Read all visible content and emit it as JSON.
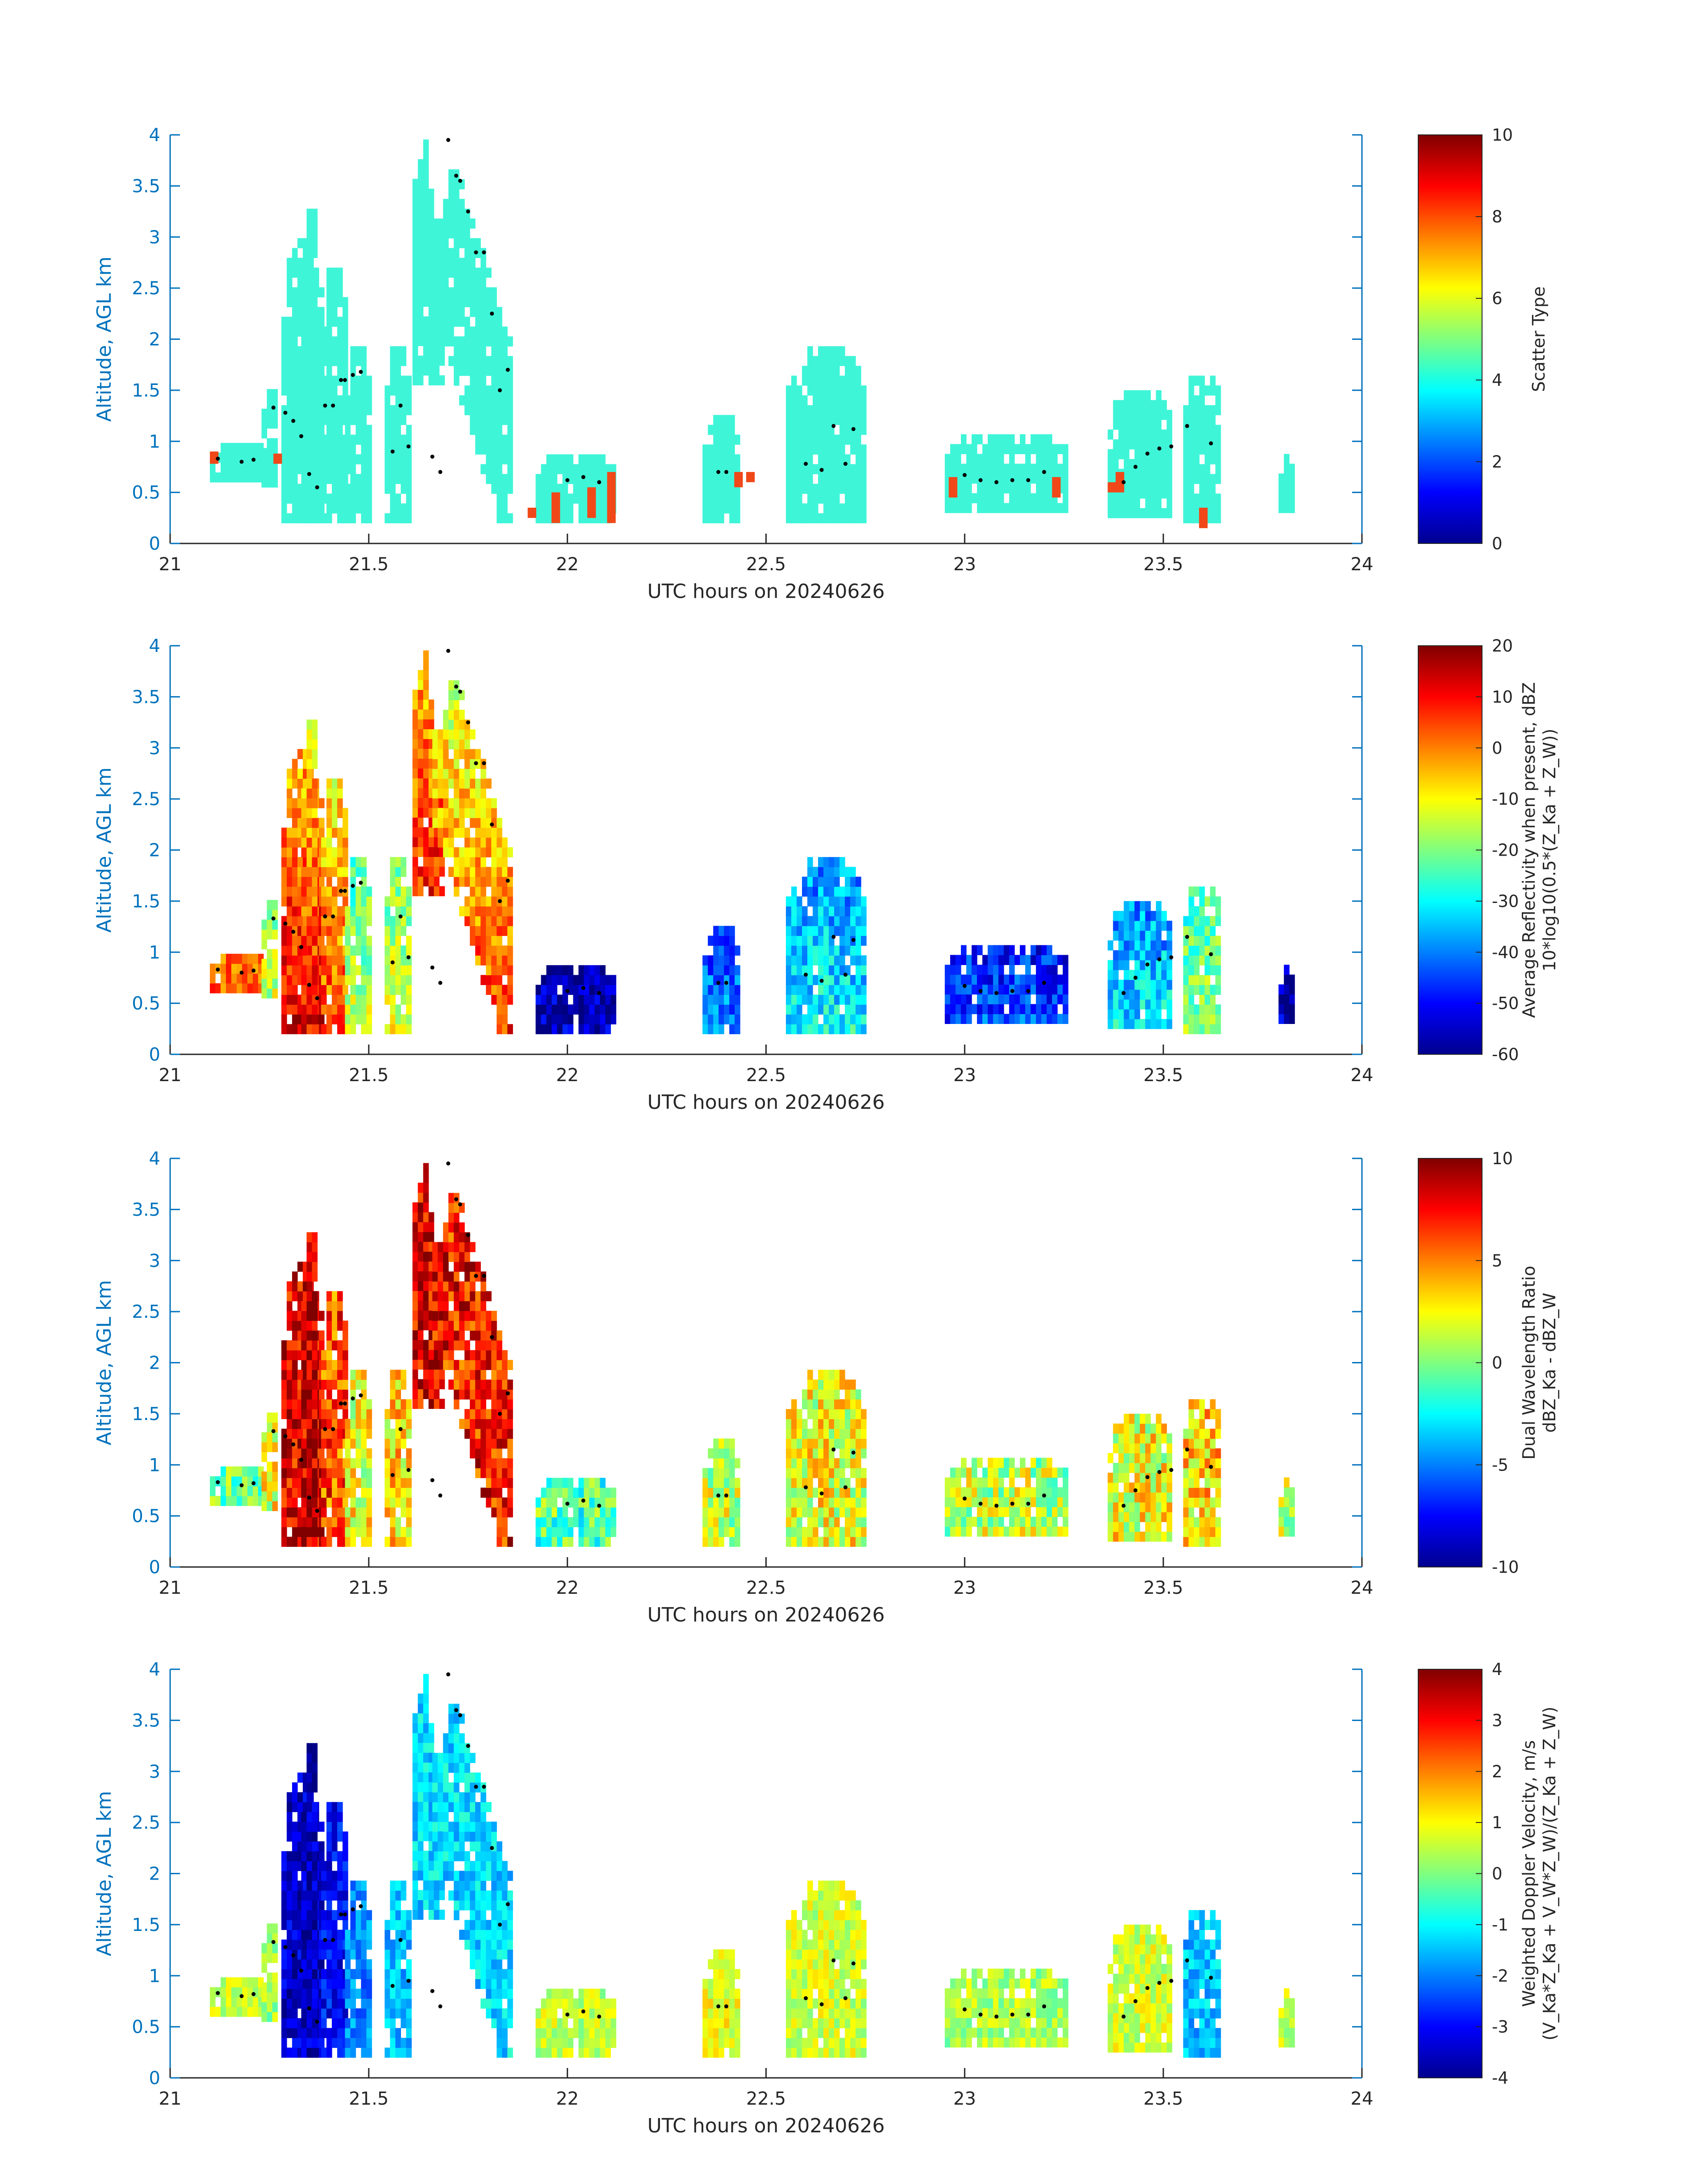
{
  "chart_data": [
    {
      "type": "heatmap",
      "panel": "scatter-type",
      "title": "",
      "xlabel": "UTC hours on 20240626",
      "ylabel": "Altitude, AGL km",
      "xlim": [
        21,
        24
      ],
      "ylim": [
        0,
        4
      ],
      "xticks": [
        "21",
        "21.5",
        "22",
        "22.5",
        "23",
        "23.5",
        "24"
      ],
      "yticks": [
        "0",
        "0.5",
        "1",
        "1.5",
        "2",
        "2.5",
        "3",
        "3.5",
        "4"
      ],
      "colorbar": {
        "label": "Scatter Type",
        "label_line2": "",
        "range": [
          0,
          10
        ],
        "ticks": [
          "0",
          "2",
          "4",
          "6",
          "8",
          "10"
        ]
      },
      "mode": "scatter"
    },
    {
      "type": "heatmap",
      "panel": "reflectivity",
      "title": "",
      "xlabel": "UTC hours on 20240626",
      "ylabel": "Altitude, AGL km",
      "xlim": [
        21,
        24
      ],
      "ylim": [
        0,
        4
      ],
      "xticks": [
        "21",
        "21.5",
        "22",
        "22.5",
        "23",
        "23.5",
        "24"
      ],
      "yticks": [
        "0",
        "0.5",
        "1",
        "1.5",
        "2",
        "2.5",
        "3",
        "3.5",
        "4"
      ],
      "colorbar": {
        "label": "Average Reflectivity when present, dBZ",
        "label_line2": "10*log10(0.5*(Z_Ka + Z_W))",
        "range": [
          -60,
          20
        ],
        "ticks": [
          "-60",
          "-50",
          "-40",
          "-30",
          "-20",
          "-10",
          "0",
          "10",
          "20"
        ]
      },
      "mode": "refl"
    },
    {
      "type": "heatmap",
      "panel": "dual-wavelength-ratio",
      "title": "",
      "xlabel": "UTC hours on 20240626",
      "ylabel": "Altitude, AGL km",
      "xlim": [
        21,
        24
      ],
      "ylim": [
        0,
        4
      ],
      "xticks": [
        "21",
        "21.5",
        "22",
        "22.5",
        "23",
        "23.5",
        "24"
      ],
      "yticks": [
        "0",
        "0.5",
        "1",
        "1.5",
        "2",
        "2.5",
        "3",
        "3.5",
        "4"
      ],
      "colorbar": {
        "label": "Dual Wavelength Ratio",
        "label_line2": "dBZ_Ka - dBZ_W",
        "range": [
          -10,
          10
        ],
        "ticks": [
          "-10",
          "-5",
          "0",
          "5",
          "10"
        ]
      },
      "mode": "dwr"
    },
    {
      "type": "heatmap",
      "panel": "doppler-velocity",
      "title": "",
      "xlabel": "UTC hours on 20240626",
      "ylabel": "Altitude, AGL km",
      "xlim": [
        21,
        24
      ],
      "ylim": [
        0,
        4
      ],
      "xticks": [
        "21",
        "21.5",
        "22",
        "22.5",
        "23",
        "23.5",
        "24"
      ],
      "yticks": [
        "0",
        "0.5",
        "1",
        "1.5",
        "2",
        "2.5",
        "3",
        "3.5",
        "4"
      ],
      "colorbar": {
        "label": "Weighted Doppler Velocity, m/s",
        "label_line2": "(V_Ka*Z_Ka + V_W*Z_W)/(Z_Ka + Z_W)",
        "range": [
          -4,
          4
        ],
        "ticks": [
          "-4",
          "-3",
          "-2",
          "-1",
          "0",
          "1",
          "2",
          "3",
          "4"
        ]
      },
      "mode": "vel"
    }
  ],
  "cloud_features": [
    {
      "x0": 21.1,
      "x1": 21.24,
      "bottom": 0.6,
      "top": 0.95,
      "dz": 0.8,
      "vel": 0.4,
      "dwr": -1,
      "tilt": 0
    },
    {
      "x0": 21.23,
      "x1": 21.27,
      "bottom": 0.55,
      "top": 1.5,
      "dz": -15,
      "vel": 0.2,
      "dwr": 2,
      "tilt": 0
    },
    {
      "x0": 21.28,
      "x1": 21.38,
      "bottom": 0.2,
      "top": 2.9,
      "dz": 12,
      "vel": -3.4,
      "dwr": 8,
      "tilt": 0
    },
    {
      "x0": 21.33,
      "x1": 21.37,
      "bottom": 0.2,
      "top": 3.25,
      "dz": 10,
      "vel": -3.5,
      "dwr": 9,
      "tilt": 0
    },
    {
      "x0": 21.38,
      "x1": 21.44,
      "bottom": 0.2,
      "top": 2.65,
      "dz": 5,
      "vel": -3.0,
      "dwr": 6,
      "tilt": 0
    },
    {
      "x0": 21.44,
      "x1": 21.5,
      "bottom": 0.2,
      "top": 1.9,
      "dz": -15,
      "vel": -2.0,
      "dwr": 2,
      "tilt": 0
    },
    {
      "x0": 21.54,
      "x1": 21.6,
      "bottom": 0.2,
      "top": 1.9,
      "dz": -12,
      "vel": -1.5,
      "dwr": 3,
      "tilt": 0
    },
    {
      "x0": 21.61,
      "x1": 21.68,
      "bottom": 1.55,
      "top": 4.0,
      "dz": 8,
      "vel": -1.3,
      "dwr": 8,
      "tilt": 0.06
    },
    {
      "x0": 21.66,
      "x1": 21.86,
      "bottom": 0.2,
      "top": 4.0,
      "dz": 6,
      "vel": -1.3,
      "dwr": 7,
      "tilt": 0.16
    },
    {
      "x0": 21.92,
      "x1": 22.12,
      "bottom": 0.2,
      "top": 0.85,
      "dz": -55,
      "vel": 0.5,
      "dwr": -1,
      "tilt": 0
    },
    {
      "x0": 22.34,
      "x1": 22.43,
      "bottom": 0.2,
      "top": 1.25,
      "dz": -40,
      "vel": 0.8,
      "dwr": 1,
      "tilt": 0
    },
    {
      "x0": 22.55,
      "x1": 22.75,
      "bottom": 0.2,
      "top": 1.85,
      "dz": -30,
      "vel": 0.6,
      "dwr": 2,
      "tilt": 0
    },
    {
      "x0": 22.95,
      "x1": 23.25,
      "bottom": 0.3,
      "top": 1.05,
      "dz": -45,
      "vel": 0.3,
      "dwr": 1,
      "tilt": 0
    },
    {
      "x0": 23.36,
      "x1": 23.52,
      "bottom": 0.25,
      "top": 1.5,
      "dz": -32,
      "vel": 0.6,
      "dwr": 2,
      "tilt": 0
    },
    {
      "x0": 23.55,
      "x1": 23.64,
      "bottom": 0.2,
      "top": 1.6,
      "dz": -18,
      "vel": -1.5,
      "dwr": 3,
      "tilt": 0
    },
    {
      "x0": 23.79,
      "x1": 23.82,
      "bottom": 0.3,
      "top": 0.8,
      "dz": -55,
      "vel": 0.5,
      "dwr": 1,
      "tilt": 0
    }
  ],
  "centroid_markers": {
    "x": [
      21.12,
      21.18,
      21.21,
      21.26,
      21.29,
      21.31,
      21.33,
      21.35,
      21.37,
      21.39,
      21.41,
      21.43,
      21.44,
      21.46,
      21.48,
      21.56,
      21.58,
      21.6,
      21.66,
      21.68,
      21.7,
      21.72,
      21.73,
      21.75,
      21.77,
      21.79,
      21.81,
      21.83,
      21.85,
      22.0,
      22.04,
      22.08,
      22.38,
      22.4,
      22.6,
      22.64,
      22.67,
      22.7,
      22.72,
      23.0,
      23.04,
      23.08,
      23.12,
      23.16,
      23.2,
      23.4,
      23.43,
      23.46,
      23.49,
      23.52,
      23.56,
      23.62
    ],
    "y": [
      0.83,
      0.8,
      0.82,
      1.33,
      1.28,
      1.2,
      1.05,
      0.68,
      0.55,
      1.35,
      1.35,
      1.6,
      1.6,
      1.65,
      1.68,
      0.9,
      1.35,
      0.95,
      0.85,
      0.7,
      3.95,
      3.6,
      3.55,
      3.25,
      2.85,
      2.85,
      2.25,
      1.5,
      1.7,
      0.62,
      0.65,
      0.6,
      0.7,
      0.7,
      0.78,
      0.72,
      1.15,
      0.78,
      1.12,
      0.67,
      0.62,
      0.6,
      0.62,
      0.62,
      0.7,
      0.6,
      0.75,
      0.88,
      0.93,
      0.95,
      1.15,
      0.98
    ]
  },
  "scatter_type_colors": {
    "main": "#3ff5d8",
    "orange": "#f04818"
  },
  "orange_scatter_cells": [
    [
      21.1,
      0.78,
      0.9
    ],
    [
      21.26,
      0.78,
      0.88
    ],
    [
      21.9,
      0.25,
      0.35
    ],
    [
      21.96,
      0.2,
      0.5
    ],
    [
      22.05,
      0.25,
      0.55
    ],
    [
      22.1,
      0.2,
      0.7
    ],
    [
      22.42,
      0.55,
      0.7
    ],
    [
      22.45,
      0.6,
      0.7
    ],
    [
      22.96,
      0.45,
      0.65
    ],
    [
      23.22,
      0.45,
      0.65
    ],
    [
      23.36,
      0.5,
      0.6
    ],
    [
      23.38,
      0.5,
      0.7
    ],
    [
      23.59,
      0.15,
      0.35
    ]
  ]
}
